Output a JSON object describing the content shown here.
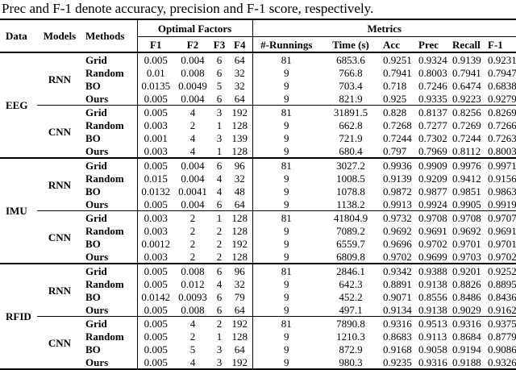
{
  "caption": "Prec and F-1 denote accuracy, precision and F-1 score, respectively.",
  "table": {
    "header": {
      "data": "Data",
      "models": "Models",
      "methods": "Methods",
      "optimal_factors": "Optimal Factors",
      "metrics": "Metrics",
      "factor_cols": [
        "F1",
        "F2",
        "F3",
        "F4"
      ],
      "metric_cols": [
        "#-Runnings",
        "Time (s)",
        "Acc",
        "Prec",
        "Recall",
        "F-1"
      ]
    },
    "groups": [
      {
        "data": "EEG",
        "models": [
          {
            "model": "RNN",
            "rows": [
              {
                "method": "Grid",
                "f": [
                  "0.005",
                  "0.004",
                  "6",
                  "64"
                ],
                "m": [
                  "81",
                  "6853.6",
                  "0.9251",
                  "0.9324",
                  "0.9139",
                  "0.9231"
                ]
              },
              {
                "method": "Random",
                "f": [
                  "0.01",
                  "0.008",
                  "6",
                  "32"
                ],
                "m": [
                  "9",
                  "766.8",
                  "0.7941",
                  "0.8003",
                  "0.7941",
                  "0.7947"
                ]
              },
              {
                "method": "BO",
                "f": [
                  "0.0135",
                  "0.0049",
                  "5",
                  "32"
                ],
                "m": [
                  "9",
                  "703.4",
                  "0.718",
                  "0.7246",
                  "0.6474",
                  "0.6838"
                ]
              },
              {
                "method": "Ours",
                "f": [
                  "0.005",
                  "0.004",
                  "6",
                  "64"
                ],
                "m": [
                  "9",
                  "821.9",
                  "0.925",
                  "0.9335",
                  "0.9223",
                  "0.9279"
                ]
              }
            ]
          },
          {
            "model": "CNN",
            "rows": [
              {
                "method": "Grid",
                "f": [
                  "0.005",
                  "4",
                  "3",
                  "192"
                ],
                "m": [
                  "81",
                  "31891.5",
                  "0.828",
                  "0.8137",
                  "0.8256",
                  "0.8269"
                ]
              },
              {
                "method": "Random",
                "f": [
                  "0.003",
                  "2",
                  "1",
                  "128"
                ],
                "m": [
                  "9",
                  "662.8",
                  "0.7268",
                  "0.7277",
                  "0.7269",
                  "0.7266"
                ]
              },
              {
                "method": "BO",
                "f": [
                  "0.001",
                  "4",
                  "3",
                  "139"
                ],
                "m": [
                  "9",
                  "721.9",
                  "0.7244",
                  "0.7302",
                  "0.7244",
                  "0.7263"
                ]
              },
              {
                "method": "Ours",
                "f": [
                  "0.003",
                  "4",
                  "1",
                  "128"
                ],
                "m": [
                  "9",
                  "680.4",
                  "0.797",
                  "0.7969",
                  "0.8112",
                  "0.8003"
                ]
              }
            ]
          }
        ]
      },
      {
        "data": "IMU",
        "models": [
          {
            "model": "RNN",
            "rows": [
              {
                "method": "Grid",
                "f": [
                  "0.005",
                  "0.004",
                  "6",
                  "96"
                ],
                "m": [
                  "81",
                  "3027.2",
                  "0.9936",
                  "0.9909",
                  "0.9976",
                  "0.9971"
                ]
              },
              {
                "method": "Random",
                "f": [
                  "0.015",
                  "0.004",
                  "4",
                  "32"
                ],
                "m": [
                  "9",
                  "1008.5",
                  "0.9139",
                  "0.9209",
                  "0.9412",
                  "0.9156"
                ]
              },
              {
                "method": "BO",
                "f": [
                  "0.0132",
                  "0.0041",
                  "4",
                  "48"
                ],
                "m": [
                  "9",
                  "1078.8",
                  "0.9872",
                  "0.9877",
                  "0.9851",
                  "0.9863"
                ]
              },
              {
                "method": "Ours",
                "f": [
                  "0.005",
                  "0.004",
                  "6",
                  "64"
                ],
                "m": [
                  "9",
                  "1138.2",
                  "0.9913",
                  "0.9924",
                  "0.9905",
                  "0.9919"
                ]
              }
            ]
          },
          {
            "model": "CNN",
            "rows": [
              {
                "method": "Grid",
                "f": [
                  "0.003",
                  "2",
                  "1",
                  "128"
                ],
                "m": [
                  "81",
                  "41804.9",
                  "0.9732",
                  "0.9708",
                  "0.9708",
                  "0.9707"
                ]
              },
              {
                "method": "Random",
                "f": [
                  "0.003",
                  "2",
                  "2",
                  "128"
                ],
                "m": [
                  "9",
                  "7089.2",
                  "0.9692",
                  "0.9691",
                  "0.9692",
                  "0.9691"
                ]
              },
              {
                "method": "BO",
                "f": [
                  "0.0012",
                  "2",
                  "2",
                  "192"
                ],
                "m": [
                  "9",
                  "6559.7",
                  "0.9696",
                  "0.9702",
                  "0.9701",
                  "0.9701"
                ]
              },
              {
                "method": "Ours",
                "f": [
                  "0.003",
                  "2",
                  "2",
                  "128"
                ],
                "m": [
                  "9",
                  "6809.8",
                  "0.9702",
                  "0.9699",
                  "0.9703",
                  "0.9702"
                ]
              }
            ]
          }
        ]
      },
      {
        "data": "RFID",
        "models": [
          {
            "model": "RNN",
            "rows": [
              {
                "method": "Grid",
                "f": [
                  "0.005",
                  "0.008",
                  "6",
                  "96"
                ],
                "m": [
                  "81",
                  "2846.1",
                  "0.9342",
                  "0.9388",
                  "0.9201",
                  "0.9252"
                ]
              },
              {
                "method": "Random",
                "f": [
                  "0.005",
                  "0.012",
                  "4",
                  "32"
                ],
                "m": [
                  "9",
                  "642.3",
                  "0.8891",
                  "0.9138",
                  "0.8826",
                  "0.8895"
                ]
              },
              {
                "method": "BO",
                "f": [
                  "0.0142",
                  "0.0093",
                  "6",
                  "79"
                ],
                "m": [
                  "9",
                  "452.2",
                  "0.9071",
                  "0.8556",
                  "0.8486",
                  "0.8436"
                ]
              },
              {
                "method": "Ours",
                "f": [
                  "0.005",
                  "0.008",
                  "6",
                  "64"
                ],
                "m": [
                  "9",
                  "497.1",
                  "0.9134",
                  "0.9138",
                  "0.9029",
                  "0.9162"
                ]
              }
            ]
          },
          {
            "model": "CNN",
            "rows": [
              {
                "method": "Grid",
                "f": [
                  "0.005",
                  "4",
                  "2",
                  "192"
                ],
                "m": [
                  "81",
                  "7890.8",
                  "0.9316",
                  "0.9513",
                  "0.9316",
                  "0.9375"
                ]
              },
              {
                "method": "Random",
                "f": [
                  "0.005",
                  "2",
                  "1",
                  "128"
                ],
                "m": [
                  "9",
                  "1210.3",
                  "0.8683",
                  "0.9113",
                  "0.8684",
                  "0.8779"
                ]
              },
              {
                "method": "BO",
                "f": [
                  "0.005",
                  "5",
                  "3",
                  "64"
                ],
                "m": [
                  "9",
                  "872.9",
                  "0.9168",
                  "0.9058",
                  "0.9194",
                  "0.9086"
                ]
              },
              {
                "method": "Ours",
                "f": [
                  "0.005",
                  "4",
                  "3",
                  "192"
                ],
                "m": [
                  "9",
                  "980.3",
                  "0.9235",
                  "0.9316",
                  "0.9188",
                  "0.9326"
                ]
              }
            ]
          }
        ]
      }
    ]
  }
}
